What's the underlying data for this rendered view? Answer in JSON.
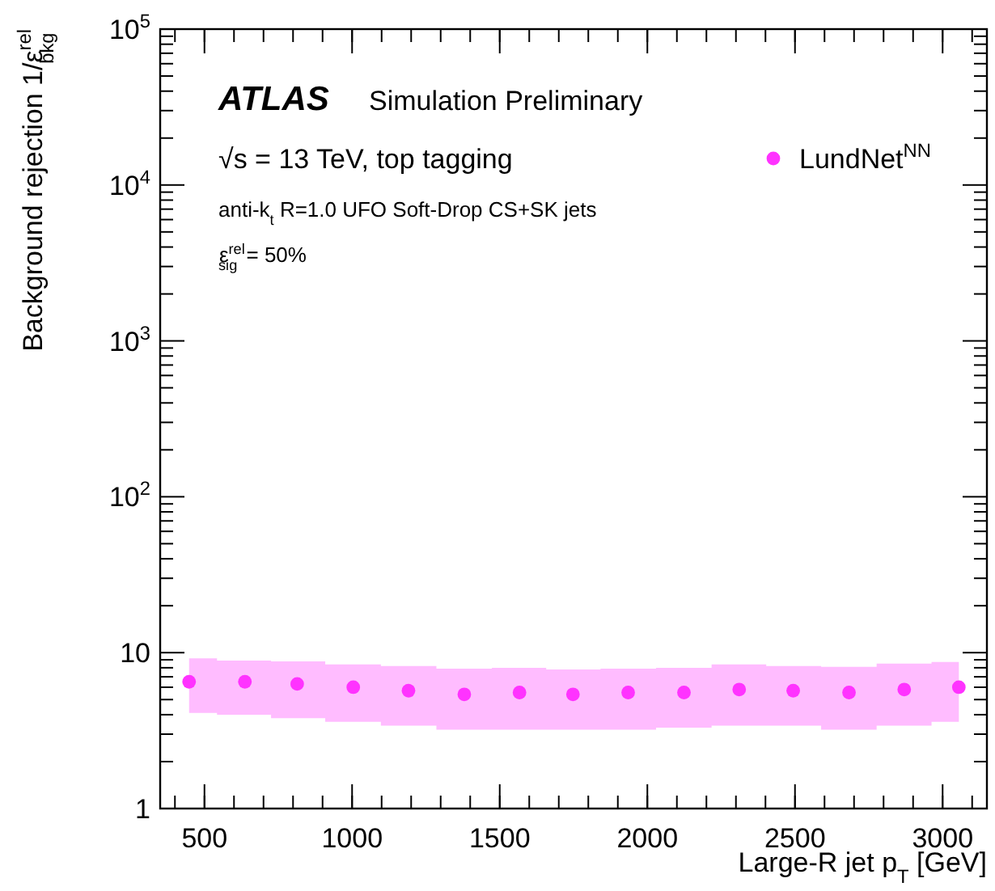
{
  "chart_data": {
    "type": "scatter",
    "xlabel": "Large-R jet p$_{T}$ [GeV]",
    "ylabel": "Background rejection 1/ε$^{rel}$$_{bkg}$",
    "annotations": [
      "ATLAS",
      "Simulation Preliminary",
      "√s = 13 TeV, top tagging",
      "anti-k$_{t}$ R=1.0 UFO Soft-Drop CS+SK jets",
      "ε$^{rel}$$_{sig}$ = 50%"
    ],
    "x": [
      448,
      637,
      814,
      1004,
      1191,
      1380,
      1567,
      1748,
      1935,
      2124,
      2311,
      2494,
      2683,
      2870,
      3055
    ],
    "series": [
      {
        "name": "LundNet$^{NN}$",
        "color": "#ff33ff",
        "values": [
          6.5,
          6.5,
          6.3,
          6.0,
          5.7,
          5.4,
          5.55,
          5.4,
          5.55,
          5.55,
          5.8,
          5.7,
          5.55,
          5.8,
          6.0
        ],
        "upper": [
          9.2,
          8.9,
          8.8,
          8.4,
          8.2,
          7.9,
          8.0,
          7.8,
          7.9,
          8.0,
          8.4,
          8.2,
          8.1,
          8.5,
          8.7
        ],
        "lower": [
          4.1,
          4.0,
          3.8,
          3.6,
          3.4,
          3.2,
          3.2,
          3.2,
          3.2,
          3.3,
          3.4,
          3.4,
          3.2,
          3.4,
          3.6
        ]
      }
    ],
    "xlim": [
      350,
      3150
    ],
    "xticks": [
      500,
      1000,
      1500,
      2000,
      2500,
      3000
    ],
    "ylim": [
      1,
      100000
    ],
    "yticks": [
      1,
      10,
      {
        "value": 100,
        "label": "10$^{2}$"
      },
      {
        "value": 1000,
        "label": "10$^{3}$"
      },
      {
        "value": 10000,
        "label": "10$^{4}$"
      },
      {
        "value": 100000,
        "label": "10$^{5}$"
      }
    ],
    "log": "y",
    "legend": "top right",
    "marker": "circle",
    "grid": false
  }
}
